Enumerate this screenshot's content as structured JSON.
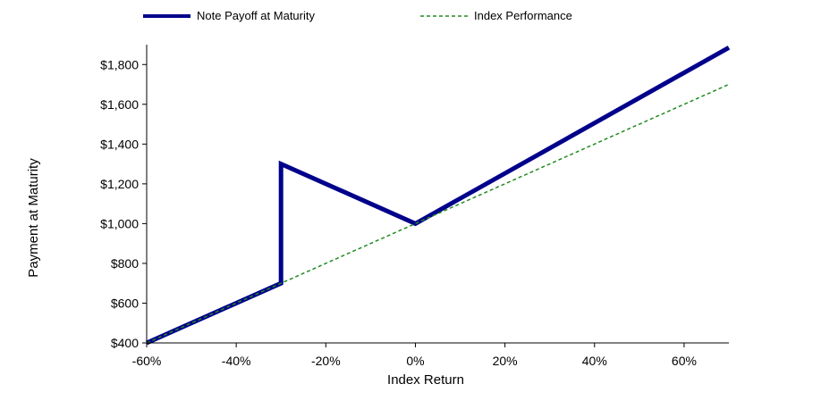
{
  "chart_data": {
    "type": "line",
    "xlabel": "Index Return",
    "ylabel": "Payment at Maturity",
    "xlim": [
      -0.6,
      0.7
    ],
    "ylim": [
      400,
      1900
    ],
    "x_ticks": [
      -0.6,
      -0.4,
      -0.2,
      0,
      0.2,
      0.4,
      0.6
    ],
    "x_tick_labels": [
      "-60%",
      "-40%",
      "-20%",
      "0%",
      "20%",
      "40%",
      "60%"
    ],
    "y_ticks": [
      400,
      600,
      800,
      1000,
      1200,
      1400,
      1600,
      1800
    ],
    "y_tick_labels": [
      "$400",
      "$600",
      "$800",
      "$1,000",
      "$1,200",
      "$1,400",
      "$1,600",
      "$1,800"
    ],
    "grid": false,
    "legend_position": "top",
    "series": [
      {
        "name": "Note Payoff at Maturity",
        "color": "#00008B",
        "style": "solid",
        "points": [
          [
            -0.6,
            400
          ],
          [
            -0.3,
            700
          ],
          [
            -0.3,
            1300
          ],
          [
            0,
            1000
          ],
          [
            0.7,
            1885
          ]
        ]
      },
      {
        "name": "Index Performance",
        "color": "#228B22",
        "style": "dashed",
        "points": [
          [
            -0.6,
            400
          ],
          [
            0.7,
            1700
          ]
        ]
      }
    ]
  }
}
